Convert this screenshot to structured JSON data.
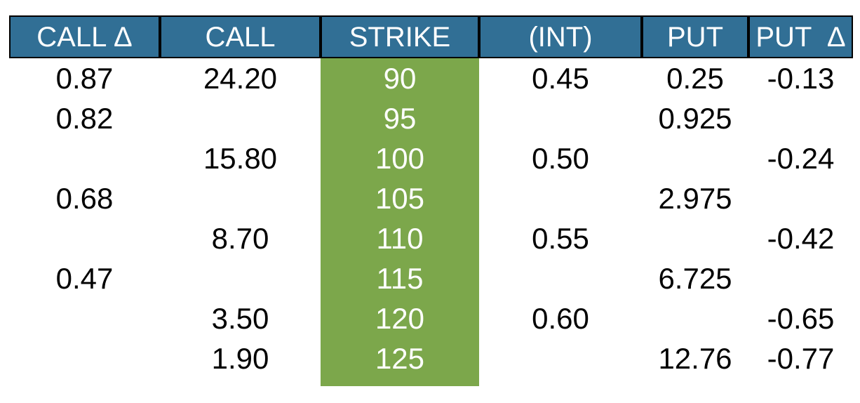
{
  "colors": {
    "header_bg": "#316F95",
    "header_text": "#FFFFFF",
    "strike_bg": "#7CA74B",
    "strike_text": "#FFFFFF",
    "body_text": "#000000",
    "border": "#000000"
  },
  "table": {
    "headers": [
      "CALL Δ",
      "CALL",
      "STRIKE",
      "(INT)",
      "PUT",
      "PUT  Δ"
    ],
    "strike_column_index": 2,
    "rows": [
      [
        "0.87",
        "24.20",
        "90",
        "0.45",
        "0.25",
        "-0.13"
      ],
      [
        "0.82",
        "",
        "95",
        "",
        "0.925",
        ""
      ],
      [
        "",
        "15.80",
        "100",
        "0.50",
        "",
        "-0.24"
      ],
      [
        "0.68",
        "",
        "105",
        "",
        "2.975",
        ""
      ],
      [
        "",
        "8.70",
        "110",
        "0.55",
        "",
        "-0.42"
      ],
      [
        "0.47",
        "",
        "115",
        "",
        "6.725",
        ""
      ],
      [
        "",
        "3.50",
        "120",
        "0.60",
        "",
        "-0.65"
      ],
      [
        "",
        "1.90",
        "125",
        "",
        "12.76",
        "-0.77"
      ]
    ]
  }
}
